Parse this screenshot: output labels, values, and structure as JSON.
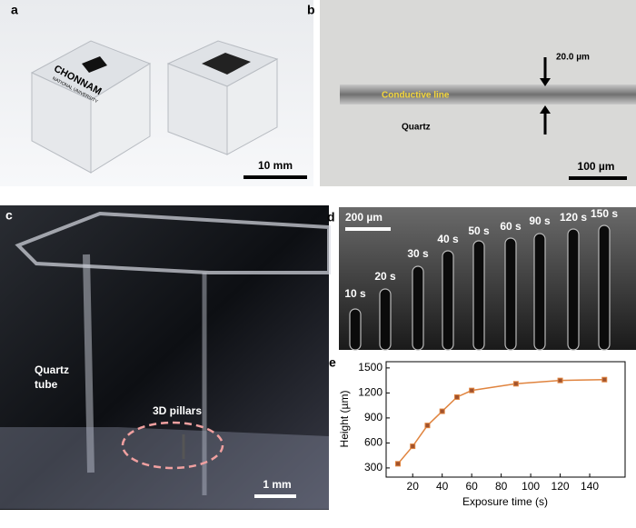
{
  "panels": {
    "a": {
      "label": "a",
      "logo_text": [
        "CHONNAM",
        "NATIONAL UNIVERSITY"
      ],
      "scale_bar": "10 mm"
    },
    "b": {
      "label": "b",
      "line_label": "Conductive line",
      "substrate": "Quartz",
      "width_label": "20.0 µm",
      "scale_bar": "100 µm"
    },
    "c": {
      "label": "c",
      "tube_label": [
        "Quartz",
        "tube"
      ],
      "pillars_label": "3D pillars",
      "scale_bar": "1 mm"
    },
    "d": {
      "label": "d",
      "scale_bar": "200 µm",
      "times": [
        "10 s",
        "20 s",
        "30 s",
        "40 s",
        "50 s",
        "60 s",
        "90 s",
        "120 s",
        "150 s"
      ]
    },
    "e": {
      "label": "e"
    }
  },
  "chart_data": {
    "type": "line",
    "x_label": "Exposure time (s)",
    "y_label": "Height (µm)",
    "x": [
      10,
      20,
      30,
      40,
      50,
      60,
      90,
      120,
      150
    ],
    "series": [
      {
        "color": "#e0843f",
        "values": [
          350,
          560,
          810,
          980,
          1150,
          1230,
          1310,
          1350,
          1360
        ]
      }
    ],
    "xlim": [
      2,
      164
    ],
    "ylim": [
      190,
      1575
    ],
    "xticks": [
      20,
      40,
      60,
      80,
      100,
      120,
      140
    ],
    "yticks": [
      300,
      600,
      900,
      1200,
      1500
    ]
  }
}
